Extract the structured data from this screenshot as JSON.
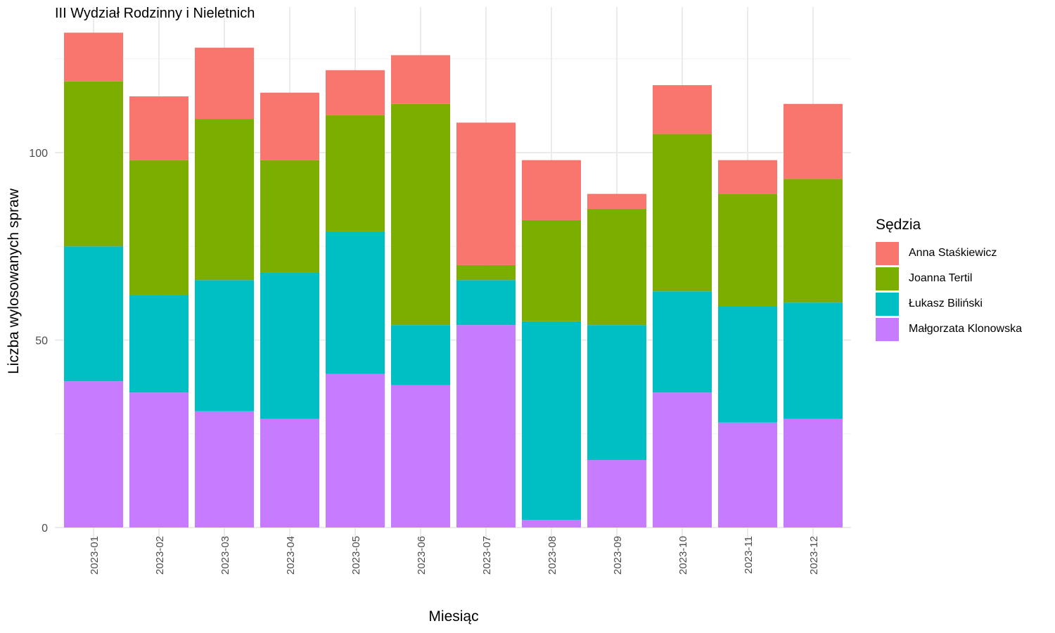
{
  "title": "III Wydział Rodzinny i Nieletnich",
  "chart_data": {
    "type": "bar",
    "stacked": true,
    "categories": [
      "2023-01",
      "2023-02",
      "2023-03",
      "2023-04",
      "2023-05",
      "2023-06",
      "2023-07",
      "2023-08",
      "2023-09",
      "2023-10",
      "2023-11",
      "2023-12"
    ],
    "xlabel": "Miesiąc",
    "ylabel": "Liczba wylosowanych spraw",
    "ylim": [
      0,
      135
    ],
    "yticks": [
      0,
      50,
      100
    ],
    "grid": true,
    "legend_title": "Sędzia",
    "legend_position": "right",
    "series": [
      {
        "name": "Małgorzata Klonowska",
        "color": "#C77CFF",
        "values": [
          39,
          36,
          31,
          29,
          41,
          38,
          54,
          2,
          18,
          36,
          28,
          29
        ]
      },
      {
        "name": "Łukasz Biliński",
        "color": "#00BFC4",
        "values": [
          36,
          26,
          35,
          39,
          38,
          16,
          12,
          53,
          36,
          27,
          31,
          31
        ]
      },
      {
        "name": "Joanna Tertil",
        "color": "#7CAE00",
        "values": [
          44,
          36,
          43,
          30,
          31,
          59,
          4,
          27,
          31,
          42,
          30,
          33
        ]
      },
      {
        "name": "Anna Staśkiewicz",
        "color": "#F8766D",
        "values": [
          13,
          17,
          19,
          18,
          12,
          13,
          38,
          16,
          4,
          13,
          9,
          20
        ]
      }
    ],
    "legend_order": [
      "Anna Staśkiewicz",
      "Joanna Tertil",
      "Łukasz Biliński",
      "Małgorzata Klonowska"
    ]
  }
}
